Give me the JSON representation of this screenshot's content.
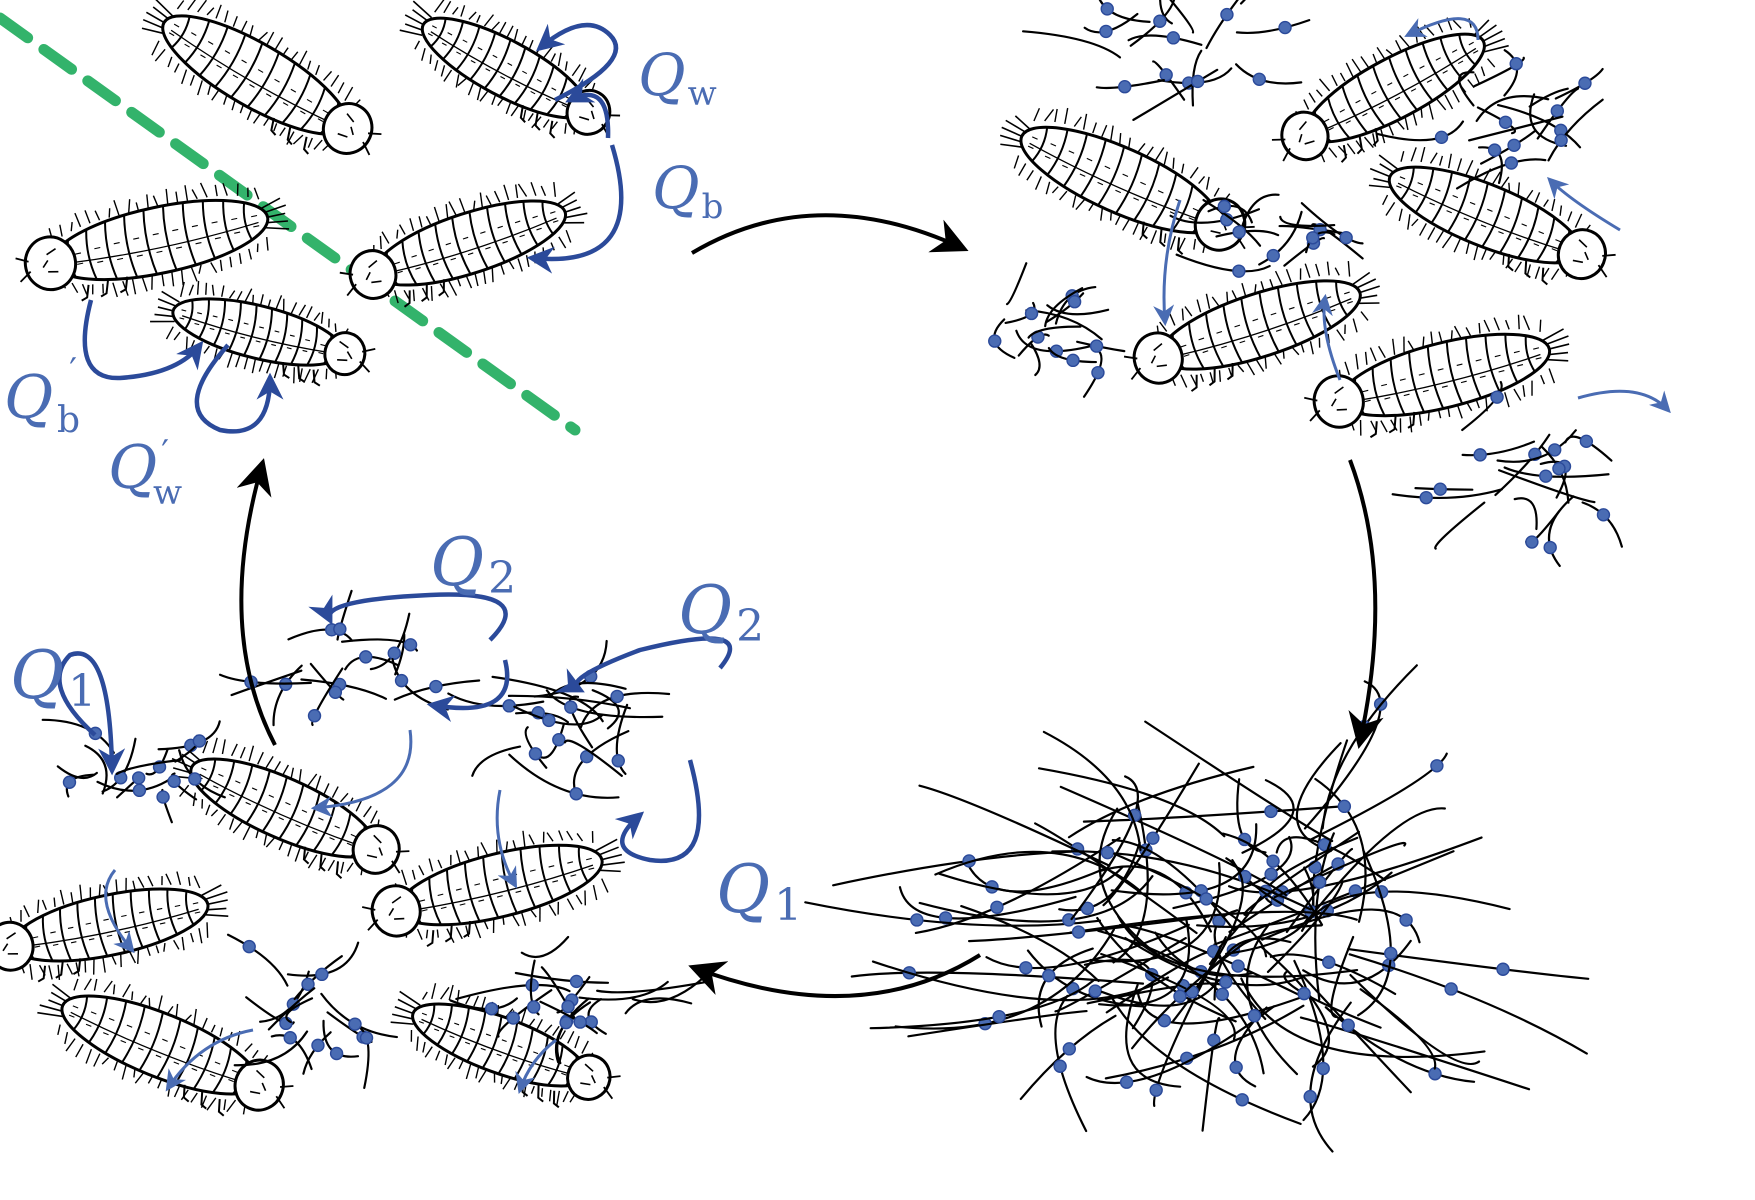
{
  "labels": {
    "q_w": {
      "base": "Q",
      "sub": "w"
    },
    "q_b": {
      "base": "Q",
      "sub": "b"
    },
    "q_b_prime": {
      "base": "Q",
      "sub": "b",
      "prime": "′"
    },
    "q_w_prime": {
      "base": "Q",
      "sub": "w",
      "prime": "′"
    },
    "q_2_left": {
      "base": "Q",
      "sub": "2"
    },
    "q_2_right": {
      "base": "Q",
      "sub": "2"
    },
    "q_1_left": {
      "base": "Q",
      "sub": "1"
    },
    "q_1_right": {
      "base": "Q",
      "sub": "1"
    }
  },
  "colors": {
    "accent": "#4a6cb3",
    "accent_dark": "#2b4a9a",
    "boundary": "#33b36b",
    "ink": "#000000",
    "larva_fill": "#ffffff"
  },
  "icons": {
    "larva": "larva-icon",
    "fungus": "fungal-hyphae-icon",
    "cycle_arrow": "cycle-arrow-icon"
  }
}
